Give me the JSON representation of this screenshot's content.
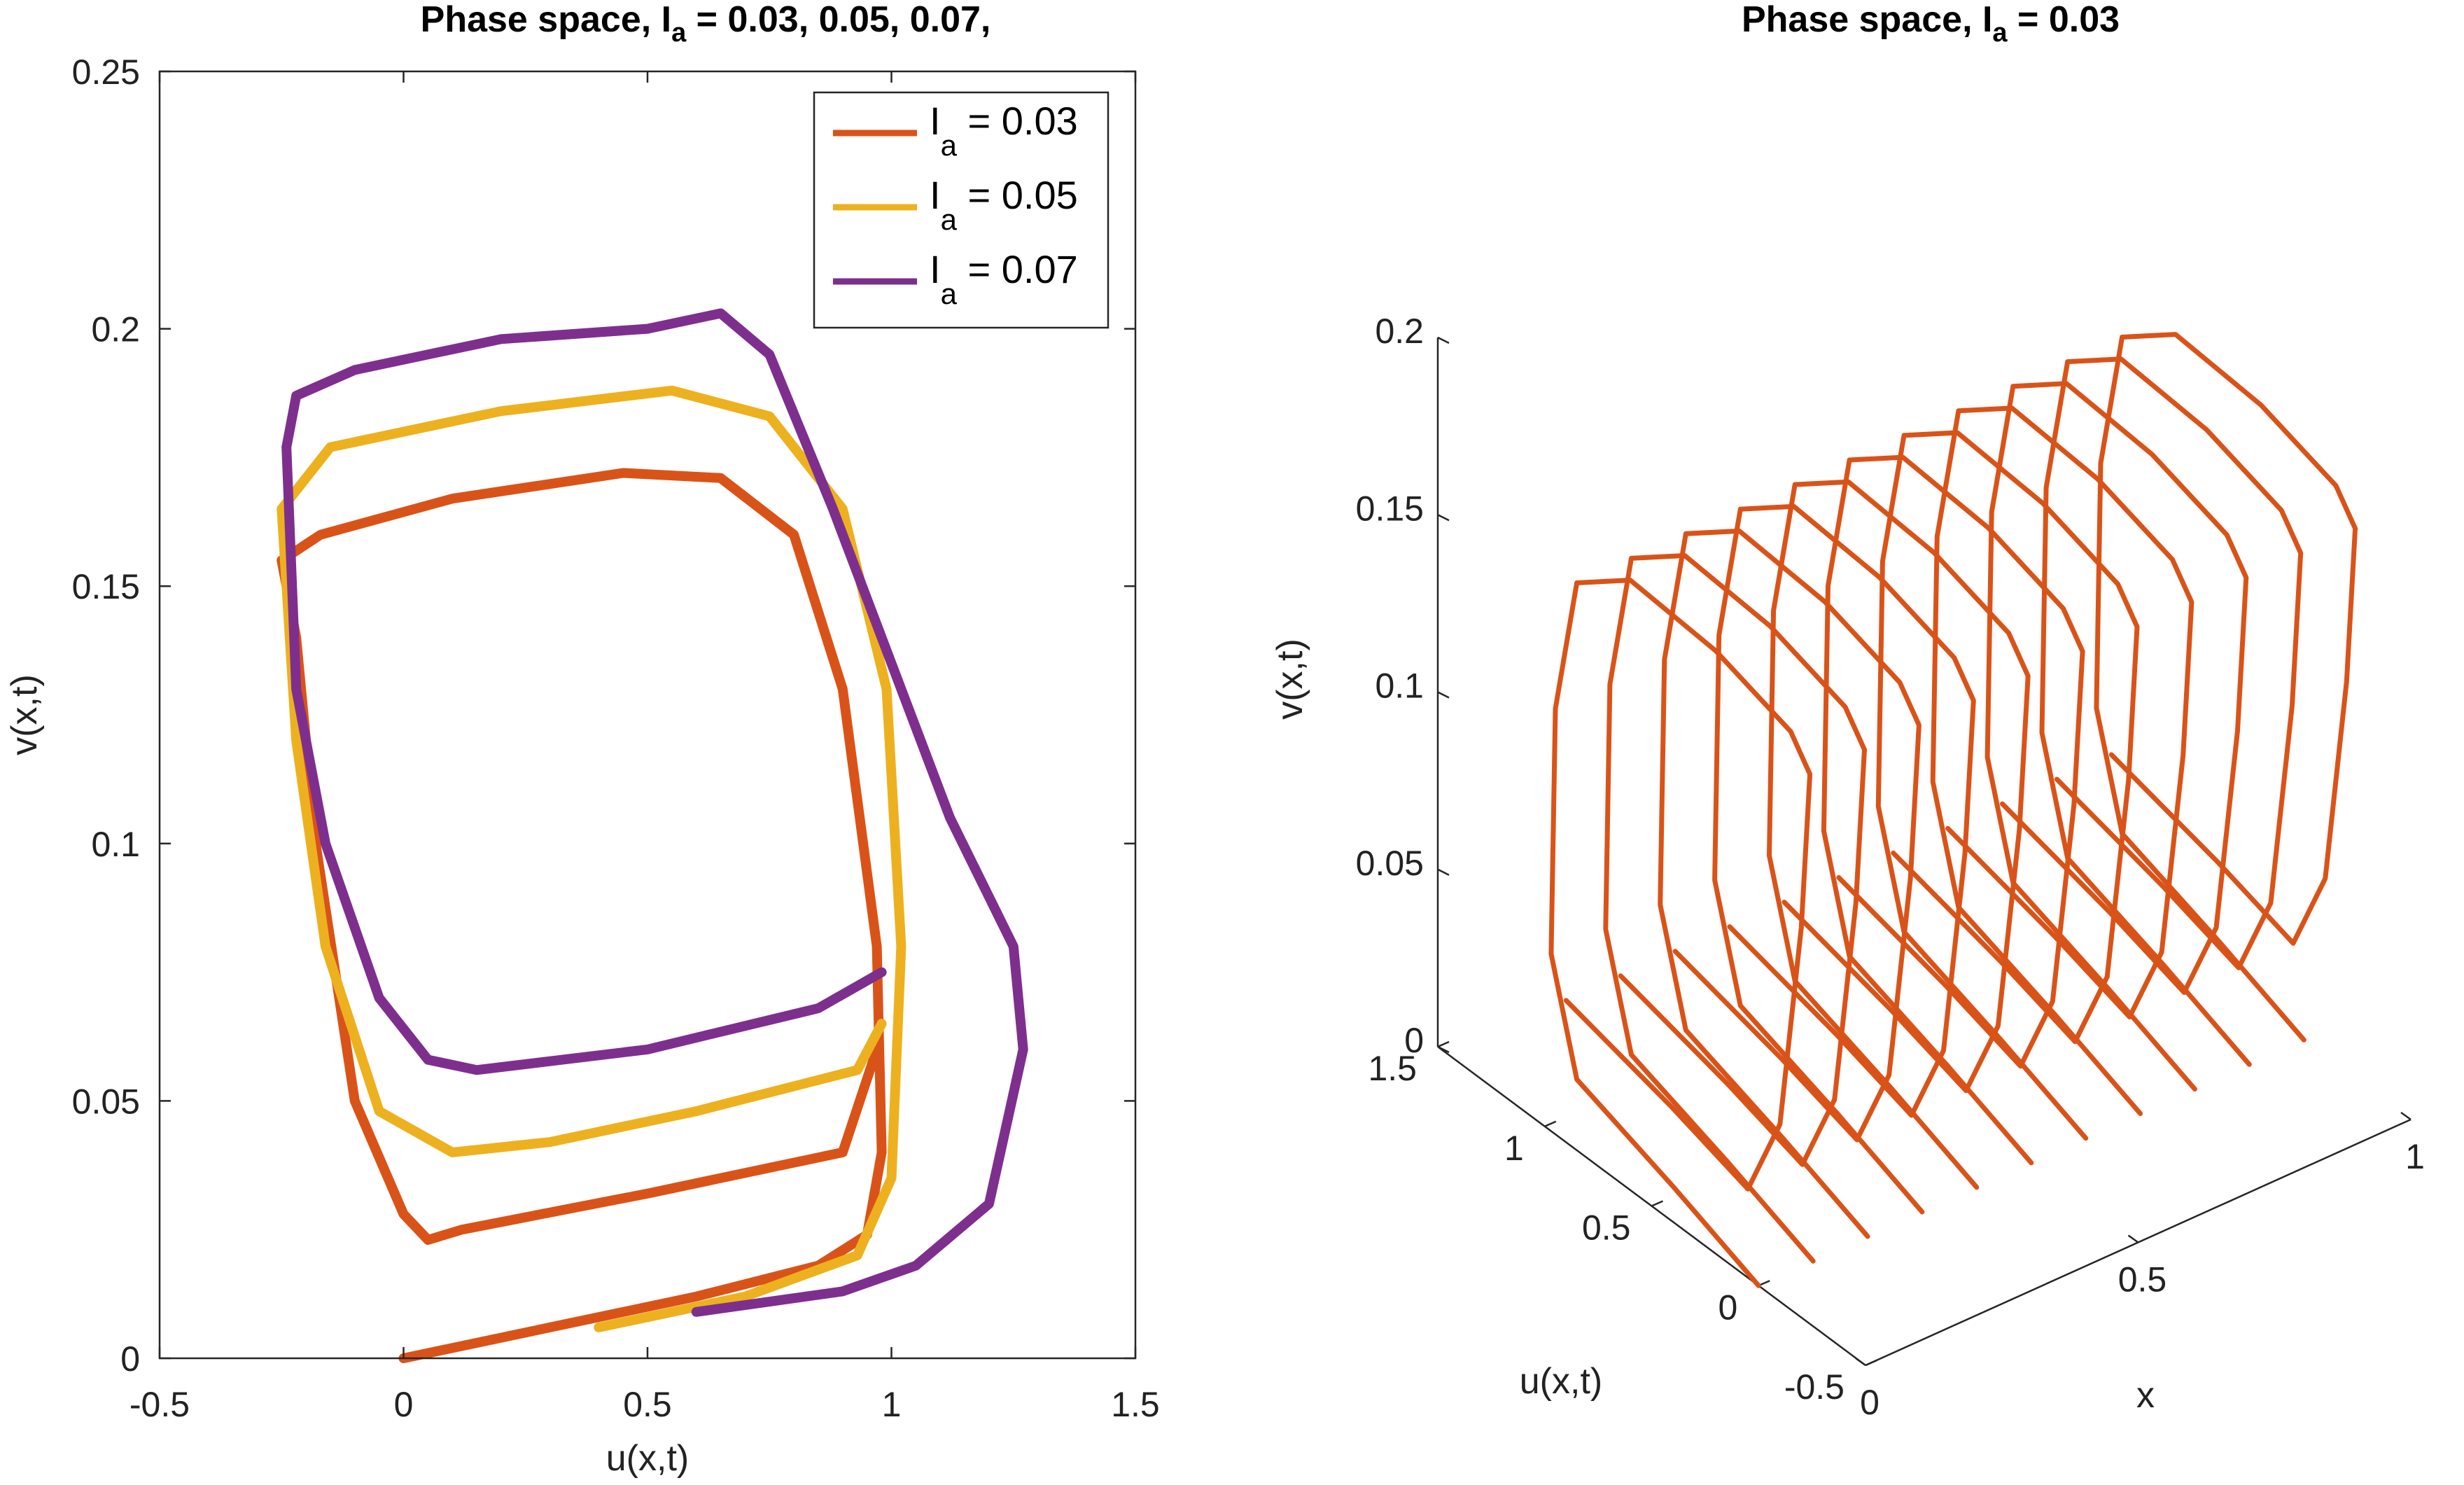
{
  "chart_data": [
    {
      "type": "line",
      "title_prefix": "Phase space, I",
      "title_sub": "a",
      "title_suffix": " = 0.03, 0.05, 0.07,",
      "xlabel": "u(x,t)",
      "ylabel": "v(x,t)",
      "xlim": [
        -0.5,
        1.5
      ],
      "ylim": [
        0,
        0.25
      ],
      "xticks": [
        -0.5,
        0,
        0.5,
        1,
        1.5
      ],
      "yticks": [
        0,
        0.05,
        0.1,
        0.15,
        0.2,
        0.25
      ],
      "xtick_labels": [
        "-0.5",
        "0",
        "0.5",
        "1",
        "1.5"
      ],
      "ytick_labels": [
        "0",
        "0.05",
        "0.1",
        "0.15",
        "0.2",
        "0.25"
      ],
      "grid": false,
      "legend_position": "top-right",
      "series": [
        {
          "legend_prefix": "I",
          "legend_sub": "a",
          "legend_suffix": " = 0.03",
          "color": "#D95319",
          "x": [
            0.0,
            0.3,
            0.6,
            0.85,
            0.95,
            0.98,
            0.97,
            0.9,
            0.8,
            0.65,
            0.45,
            0.1,
            -0.17,
            -0.25,
            -0.22,
            -0.18,
            -0.1,
            0.0,
            0.05,
            0.12,
            0.5,
            0.9,
            0.97
          ],
          "y": [
            0.0,
            0.006,
            0.012,
            0.018,
            0.024,
            0.04,
            0.08,
            0.13,
            0.16,
            0.171,
            0.172,
            0.167,
            0.16,
            0.155,
            0.14,
            0.1,
            0.05,
            0.028,
            0.023,
            0.025,
            0.032,
            0.04,
            0.06
          ]
        },
        {
          "legend_prefix": "I",
          "legend_sub": "a",
          "legend_suffix": " = 0.05",
          "color": "#EDB120",
          "x": [
            0.4,
            0.7,
            0.93,
            1.0,
            1.02,
            0.99,
            0.9,
            0.75,
            0.55,
            0.2,
            -0.15,
            -0.25,
            -0.22,
            -0.16,
            -0.05,
            0.1,
            0.3,
            0.6,
            0.93,
            0.98
          ],
          "y": [
            0.006,
            0.012,
            0.02,
            0.035,
            0.08,
            0.13,
            0.165,
            0.183,
            0.188,
            0.184,
            0.177,
            0.165,
            0.12,
            0.08,
            0.048,
            0.04,
            0.042,
            0.048,
            0.056,
            0.065
          ]
        },
        {
          "legend_prefix": "I",
          "legend_sub": "a",
          "legend_suffix": " = 0.07",
          "color": "#7E2F8E",
          "x": [
            0.6,
            0.9,
            1.05,
            1.2,
            1.27,
            1.25,
            1.12,
            1.0,
            0.88,
            0.75,
            0.65,
            0.5,
            0.2,
            -0.1,
            -0.22,
            -0.24,
            -0.22,
            -0.16,
            -0.05,
            0.05,
            0.15,
            0.5,
            0.85,
            0.98
          ],
          "y": [
            0.009,
            0.013,
            0.018,
            0.03,
            0.06,
            0.08,
            0.105,
            0.135,
            0.165,
            0.195,
            0.203,
            0.2,
            0.198,
            0.192,
            0.187,
            0.177,
            0.13,
            0.1,
            0.07,
            0.058,
            0.056,
            0.06,
            0.068,
            0.075
          ]
        }
      ]
    },
    {
      "type": "line",
      "title_prefix": "Phase space, I",
      "title_sub": "a",
      "title_suffix": " = 0.03",
      "xlabel": "x",
      "ylabel": "v(x,t)",
      "zlabel_side": "u(x,t)",
      "x_axis_ticks": [
        0,
        0.5,
        1
      ],
      "x_axis_tick_labels": [
        "0",
        "0.5",
        "1"
      ],
      "u_axis_ticks": [
        -0.5,
        0,
        0.5,
        1,
        1.5
      ],
      "u_axis_tick_labels": [
        "-0.5",
        "0",
        "0.5",
        "1",
        "1.5"
      ],
      "v_axis_ticks": [
        0,
        0.05,
        0.1,
        0.15,
        0.2
      ],
      "v_axis_tick_labels": [
        "0",
        "0.05",
        "0.1",
        "0.15",
        "0.2"
      ],
      "xlim": [
        0,
        1
      ],
      "ulim": [
        -0.5,
        1.5
      ],
      "vlim": [
        0,
        0.2
      ],
      "color": "#D95319",
      "x_slices": [
        0.0,
        0.1,
        0.2,
        0.3,
        0.4,
        0.5,
        0.6,
        0.7,
        0.8,
        0.9,
        1.0
      ],
      "loop_u": [
        0.0,
        0.4,
        0.85,
        0.97,
        0.95,
        0.85,
        0.6,
        0.2,
        -0.15,
        -0.24,
        -0.2,
        -0.1,
        0.05,
        0.4,
        0.9
      ],
      "loop_v": [
        0.0,
        0.01,
        0.02,
        0.05,
        0.12,
        0.16,
        0.172,
        0.17,
        0.163,
        0.155,
        0.11,
        0.05,
        0.025,
        0.032,
        0.04
      ]
    }
  ]
}
